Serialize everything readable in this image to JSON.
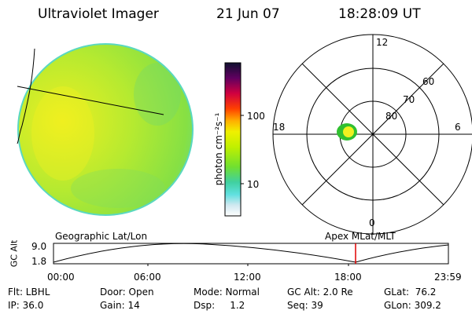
{
  "header": {
    "instrument": "Ultraviolet Imager",
    "date": "21 Jun 07",
    "time": "18:28:09 UT"
  },
  "colorbar": {
    "unit_label": "photon cm⁻²s⁻¹",
    "ticks": [
      "100",
      "10"
    ]
  },
  "polar_plot": {
    "mlt_labels": [
      "12",
      "18",
      "6",
      "0"
    ],
    "lat_labels": [
      "60",
      "70",
      "80"
    ]
  },
  "alt_panel": {
    "left_title": "Geographic Lat/Lon",
    "right_title": "Apex  MLat/MLT",
    "ylabel": "GC Alt",
    "yticks": [
      "9.0",
      "1.8"
    ],
    "xticks": [
      "00:00",
      "06:00",
      "12:00",
      "18:00",
      "23:59"
    ]
  },
  "info": {
    "flt": "Flt: LBHL",
    "ip": "IP: 36.0",
    "door": "Door: Open",
    "gain": "Gain: 14",
    "mode": "Mode: Normal",
    "dsp": "Dsp:     1.2",
    "gc_alt": "GC Alt: 2.0 Re",
    "seq": "Seq: 39",
    "glat": "GLat:  76.2",
    "glon": "GLon: 309.2"
  },
  "colors": {
    "accent_marker": "#e00000"
  }
}
